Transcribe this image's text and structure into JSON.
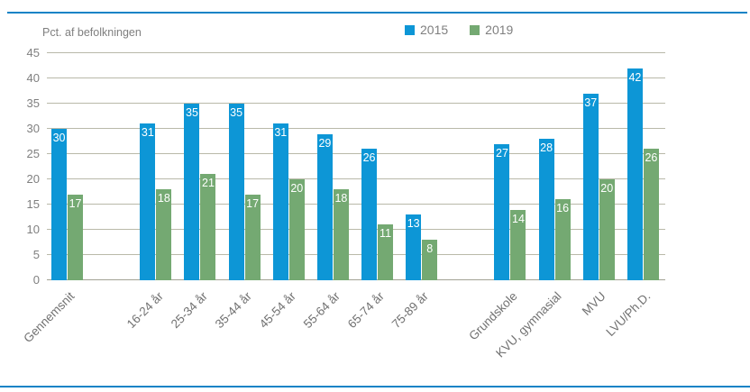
{
  "frame": {
    "rule_color": "#1283c6",
    "background": "#ffffff"
  },
  "chart_data": {
    "type": "bar",
    "title": "",
    "axis_label": "Pct. af befolkningen",
    "categories": [
      "Gennemsnit",
      "16-24 år",
      "25-34 år",
      "35-44 år",
      "45-54 år",
      "55-64 år",
      "65-74 år",
      "75-89 år",
      "Grundskole",
      "KVU, gymnasial",
      "MVU",
      "LVU/Ph.D."
    ],
    "series": [
      {
        "name": "2015",
        "color": "#0d96d6",
        "values": [
          30,
          31,
          35,
          35,
          31,
          29,
          26,
          13,
          27,
          28,
          37,
          42
        ]
      },
      {
        "name": "2019",
        "color": "#74a972",
        "values": [
          17,
          18,
          21,
          17,
          20,
          18,
          11,
          8,
          14,
          16,
          20,
          26
        ]
      }
    ],
    "xlabel": "",
    "ylabel": "Pct. af befolkningen",
    "ylim": [
      0,
      45
    ],
    "yticks": [
      0,
      5,
      10,
      15,
      20,
      25,
      30,
      35,
      40,
      45
    ],
    "grid": true,
    "gridline_color": "#b9b9a9",
    "legend_position": "top-center",
    "gaps_after_indices": [
      0,
      7
    ],
    "bar_label_color": "#ffffff",
    "text_color": "#7f7f7f"
  }
}
